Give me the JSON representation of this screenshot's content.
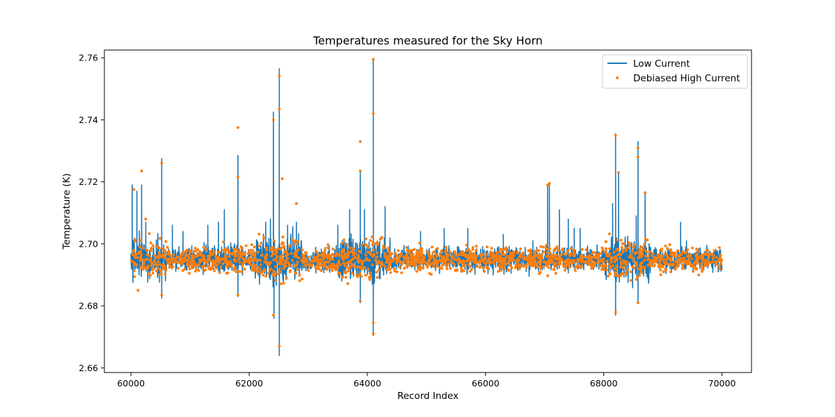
{
  "chart_data": {
    "type": "line",
    "title": "Temperatures measured for the Sky Horn",
    "xlabel": "Record Index",
    "ylabel": "Temperature (K)",
    "xlim": [
      59550,
      70500
    ],
    "ylim": [
      2.6585,
      2.7625
    ],
    "x_ticks": [
      60000,
      62000,
      64000,
      66000,
      68000,
      70000
    ],
    "x_tick_labels": [
      "60000",
      "62000",
      "64000",
      "66000",
      "68000",
      "70000"
    ],
    "y_ticks": [
      2.66,
      2.68,
      2.7,
      2.72,
      2.74,
      2.76
    ],
    "y_tick_labels": [
      "2.66",
      "2.68",
      "2.70",
      "2.72",
      "2.74",
      "2.76"
    ],
    "baseline": 2.695,
    "legend_position": "top-right",
    "series": [
      {
        "name": "Low Current",
        "kind": "line",
        "color": "#1f77b4",
        "legend_label": "Low Current",
        "values": [
          [
            60020,
            2.719
          ],
          [
            60100,
            2.717
          ],
          [
            60180,
            2.719
          ],
          [
            60250,
            2.707
          ],
          [
            60520,
            2.7275
          ],
          [
            60520,
            2.6825
          ],
          [
            60700,
            2.706
          ],
          [
            60880,
            2.704
          ],
          [
            61300,
            2.706
          ],
          [
            61480,
            2.707
          ],
          [
            61580,
            2.711
          ],
          [
            61810,
            2.7285
          ],
          [
            61810,
            2.683
          ],
          [
            62280,
            2.707
          ],
          [
            62360,
            2.708
          ],
          [
            62410,
            2.7425
          ],
          [
            62420,
            2.676
          ],
          [
            62510,
            2.7565
          ],
          [
            62510,
            2.664
          ],
          [
            62650,
            2.706
          ],
          [
            62800,
            2.707
          ],
          [
            63500,
            2.706
          ],
          [
            63700,
            2.711
          ],
          [
            63880,
            2.7235
          ],
          [
            63880,
            2.681
          ],
          [
            63950,
            2.711
          ],
          [
            64100,
            2.759
          ],
          [
            64100,
            2.6705
          ],
          [
            64300,
            2.712
          ],
          [
            64900,
            2.704
          ],
          [
            65300,
            2.705
          ],
          [
            65700,
            2.705
          ],
          [
            66300,
            2.703
          ],
          [
            66800,
            2.701
          ],
          [
            67050,
            2.719
          ],
          [
            67080,
            2.719
          ],
          [
            67250,
            2.711
          ],
          [
            67400,
            2.708
          ],
          [
            67500,
            2.705
          ],
          [
            67600,
            2.705
          ],
          [
            68150,
            2.713
          ],
          [
            68200,
            2.7355
          ],
          [
            68200,
            2.677
          ],
          [
            68250,
            2.7225
          ],
          [
            68550,
            2.709
          ],
          [
            68580,
            2.733
          ],
          [
            68580,
            2.681
          ],
          [
            68700,
            2.716
          ],
          [
            69300,
            2.707
          ],
          [
            69400,
            2.701
          ]
        ]
      },
      {
        "name": "Debiased High Current",
        "kind": "scatter",
        "color": "#ff7f0e",
        "legend_label": "Debiased High Current",
        "values": [
          [
            60050,
            2.7175
          ],
          [
            60180,
            2.7235
          ],
          [
            60250,
            2.708
          ],
          [
            60120,
            2.685
          ],
          [
            60520,
            2.726
          ],
          [
            60520,
            2.6835
          ],
          [
            61810,
            2.7375
          ],
          [
            61810,
            2.7215
          ],
          [
            61810,
            2.6835
          ],
          [
            62410,
            2.74
          ],
          [
            62410,
            2.677
          ],
          [
            62510,
            2.754
          ],
          [
            62510,
            2.7435
          ],
          [
            62510,
            2.667
          ],
          [
            62560,
            2.721
          ],
          [
            62800,
            2.713
          ],
          [
            63880,
            2.733
          ],
          [
            63880,
            2.7235
          ],
          [
            63880,
            2.6815
          ],
          [
            64100,
            2.7595
          ],
          [
            64100,
            2.742
          ],
          [
            64100,
            2.6745
          ],
          [
            64100,
            2.671
          ],
          [
            67050,
            2.719
          ],
          [
            67080,
            2.7195
          ],
          [
            68200,
            2.735
          ],
          [
            68200,
            2.678
          ],
          [
            68250,
            2.723
          ],
          [
            68580,
            2.731
          ],
          [
            68580,
            2.728
          ],
          [
            68580,
            2.681
          ],
          [
            68700,
            2.7165
          ]
        ]
      }
    ]
  }
}
